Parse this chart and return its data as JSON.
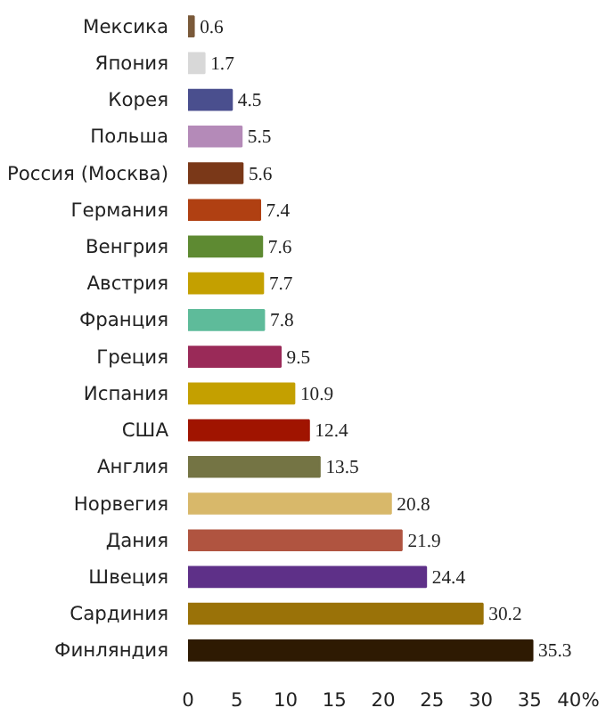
{
  "chart_data": {
    "type": "bar",
    "orientation": "horizontal",
    "categories": [
      "Мексика",
      "Япония",
      "Корея",
      "Польша",
      "Россия (Москва)",
      "Германия",
      "Венгрия",
      "Австрия",
      "Франция",
      "Греция",
      "Испания",
      "США",
      "Англия",
      "Норвегия",
      "Дания",
      "Швеция",
      "Сардиния",
      "Финляндия"
    ],
    "values": [
      0.6,
      1.7,
      4.5,
      5.5,
      5.6,
      7.4,
      7.6,
      7.7,
      7.8,
      9.5,
      10.9,
      12.4,
      13.5,
      20.8,
      21.9,
      24.4,
      30.2,
      35.3
    ],
    "colors": [
      "#7a5a3a",
      "#d8d8d8",
      "#4a4f8e",
      "#b48ab8",
      "#7a3818",
      "#b04012",
      "#5e8a32",
      "#c4a000",
      "#5ebb9a",
      "#9a2a58",
      "#c4a000",
      "#a01400",
      "#747444",
      "#d8b86a",
      "#b05440",
      "#5e3088",
      "#9a7208",
      "#2e1a02"
    ],
    "data_labels": true,
    "xlim": [
      0,
      40
    ],
    "xticks": [
      0,
      5,
      10,
      15,
      20,
      25,
      30,
      35,
      {
        "value": 40,
        "label": "40%"
      }
    ],
    "grid": false
  }
}
